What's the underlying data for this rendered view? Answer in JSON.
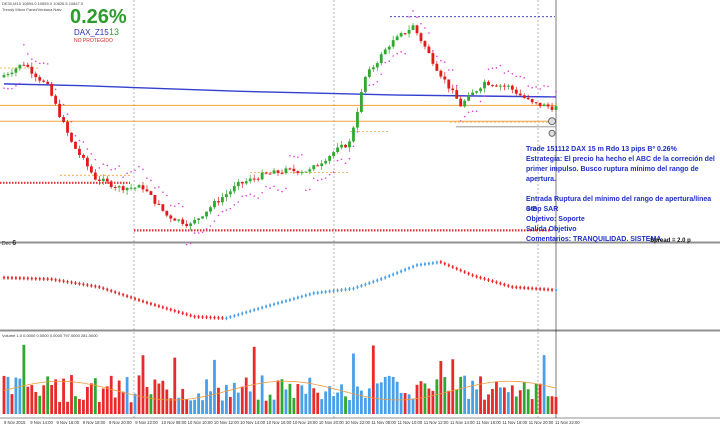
{
  "header": {
    "symbol_line": "DE30,M15 10894.0 10859.0 10826.5 10847.0",
    "subtitle_line": "Trendy Micro Panel/Ventana Natv"
  },
  "stats": {
    "percent": "0.26%",
    "symbol": "DAX_Z15",
    "pips": "13",
    "status": "NO PROTEGIDO"
  },
  "trade_note": [
    "Trade 151112 DAX 15 m Rdo 13 pips Bº 0.26%",
    "Estrategia: El precio ha hecho el ABC de la correción del",
    "primer impulso. Busco ruptura mínimo del rango de",
    "apertura.",
    "",
    "Entrada Ruptura del mínimo del rango de apertura/línea 0-B",
    "Stop SAR",
    "Objetivo: Soporte",
    "Salida Objetivo",
    "Comentarios: TRANQUILIDAD. SISTEMA"
  ],
  "spread_label": "Spread = 2.0 p",
  "left_marker": "Dec",
  "left_marker_num": "6",
  "volume_label": "Volume 1.0 0.0000 0.0000 0.0000 797.0000 281.0000",
  "chart_data": {
    "type": "candlestick",
    "x_tick_labels": [
      "9 Nov 2015",
      "9 Nov 14:00",
      "9 Nov 16:00",
      "9 Nov 18:00",
      "9 Nov 20:00",
      "9 Nov 22:00",
      "10 Nov 08:00",
      "10 Nov 10:00",
      "10 Nov 12:00",
      "10 Nov 14:00",
      "10 Nov 16:00",
      "10 Nov 18:00",
      "10 Nov 20:00",
      "10 Nov 22:00",
      "11 Nov 08:00",
      "11 Nov 10:00",
      "11 Nov 12:00",
      "11 Nov 14:00",
      "11 Nov 16:00",
      "11 Nov 18:00",
      "11 Nov 20:00",
      "11 Nov 22:00"
    ],
    "price_waypoints": [
      [
        0,
        10870
      ],
      [
        6,
        10885
      ],
      [
        12,
        10860
      ],
      [
        18,
        10800
      ],
      [
        24,
        10762
      ],
      [
        30,
        10752
      ],
      [
        36,
        10752
      ],
      [
        42,
        10722
      ],
      [
        48,
        10712
      ],
      [
        54,
        10735
      ],
      [
        60,
        10755
      ],
      [
        66,
        10765
      ],
      [
        72,
        10770
      ],
      [
        78,
        10770
      ],
      [
        84,
        10790
      ],
      [
        88,
        10800
      ],
      [
        92,
        10870
      ],
      [
        98,
        10905
      ],
      [
        104,
        10925
      ],
      [
        110,
        10880
      ],
      [
        116,
        10840
      ],
      [
        122,
        10865
      ],
      [
        128,
        10860
      ],
      [
        134,
        10842
      ],
      [
        139,
        10838
      ]
    ],
    "bars": 140,
    "price_range": [
      10700,
      10940
    ],
    "moving_average_200": [
      10863,
      10861,
      10858,
      10855,
      10853,
      10851,
      10850,
      10849
    ],
    "horizontal_levels": [
      10840,
      10823
    ],
    "support_level": 10757,
    "lower_support": 10706,
    "oscillator_waypoints": [
      [
        0,
        0.62
      ],
      [
        12,
        0.6
      ],
      [
        24,
        0.5
      ],
      [
        36,
        0.3
      ],
      [
        48,
        0.12
      ],
      [
        56,
        0.1
      ],
      [
        66,
        0.25
      ],
      [
        78,
        0.42
      ],
      [
        88,
        0.48
      ],
      [
        96,
        0.62
      ],
      [
        104,
        0.78
      ],
      [
        110,
        0.82
      ],
      [
        118,
        0.65
      ],
      [
        128,
        0.5
      ],
      [
        139,
        0.46
      ]
    ],
    "volume_range": [
      0,
      1000
    ]
  }
}
